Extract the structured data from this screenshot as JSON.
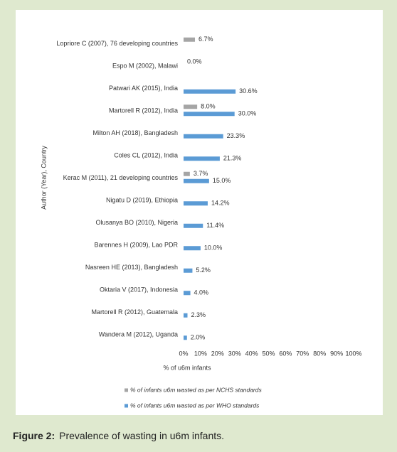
{
  "chart_data": {
    "type": "bar",
    "orientation": "horizontal",
    "categories": [
      "Lopriore C (2007), 76 developing countries",
      "Espo M (2002), Malawi",
      "Patwari AK (2015), India",
      "Martorell R (2012), India",
      "Milton AH (2018), Bangladesh",
      "Coles CL (2012), India",
      "Kerac M (2011), 21 developing countries",
      "Nigatu D (2019), Ethiopia",
      "Olusanya BO (2010), Nigeria",
      "Barennes H (2009), Lao PDR",
      "Nasreen HE (2013), Bangladesh",
      "Oktaria V (2017), Indonesia",
      "Martorell R (2012), Guatemala",
      "Wandera M (2012), Uganda"
    ],
    "series": [
      {
        "name": "% of infants u6m wasted as per NCHS standards",
        "color": "#a5a5a5",
        "values": [
          6.7,
          0.0,
          null,
          8.0,
          null,
          null,
          3.7,
          null,
          null,
          null,
          null,
          null,
          null,
          null
        ],
        "value_labels": [
          "6.7%",
          "0.0%",
          null,
          "8.0%",
          null,
          null,
          "3.7%",
          null,
          null,
          null,
          null,
          null,
          null,
          null
        ]
      },
      {
        "name": "% of infants u6m wasted as per WHO standards",
        "color": "#5b9bd5",
        "values": [
          null,
          null,
          30.6,
          30.0,
          23.3,
          21.3,
          15.0,
          14.2,
          11.4,
          10.0,
          5.2,
          4.0,
          2.3,
          2.0
        ],
        "value_labels": [
          null,
          null,
          "30.6%",
          "30.0%",
          "23.3%",
          "21.3%",
          "15.0%",
          "14.2%",
          "11.4%",
          "10.0%",
          "5.2%",
          "4.0%",
          "2.3%",
          "2.0%"
        ]
      }
    ],
    "xlim": [
      0,
      100
    ],
    "xticks": [
      {
        "value": 0,
        "label": "0%"
      },
      {
        "value": 10,
        "label": "10%"
      },
      {
        "value": 20,
        "label": "20%"
      },
      {
        "value": 30,
        "label": "30%"
      },
      {
        "value": 40,
        "label": "40%"
      },
      {
        "value": 50,
        "label": "50%"
      },
      {
        "value": 60,
        "label": "60%"
      },
      {
        "value": 70,
        "label": "70%"
      },
      {
        "value": 80,
        "label": "80%"
      },
      {
        "value": 90,
        "label": "90%"
      },
      {
        "value": 100,
        "label": "100%"
      }
    ],
    "x_label": "% of u6m infants",
    "y_label": "Author (Year), Country",
    "legend": "bottom",
    "grid": false
  },
  "caption": {
    "label": "Figure 2:",
    "text": "Prevalence of wasting in u6m infants."
  }
}
